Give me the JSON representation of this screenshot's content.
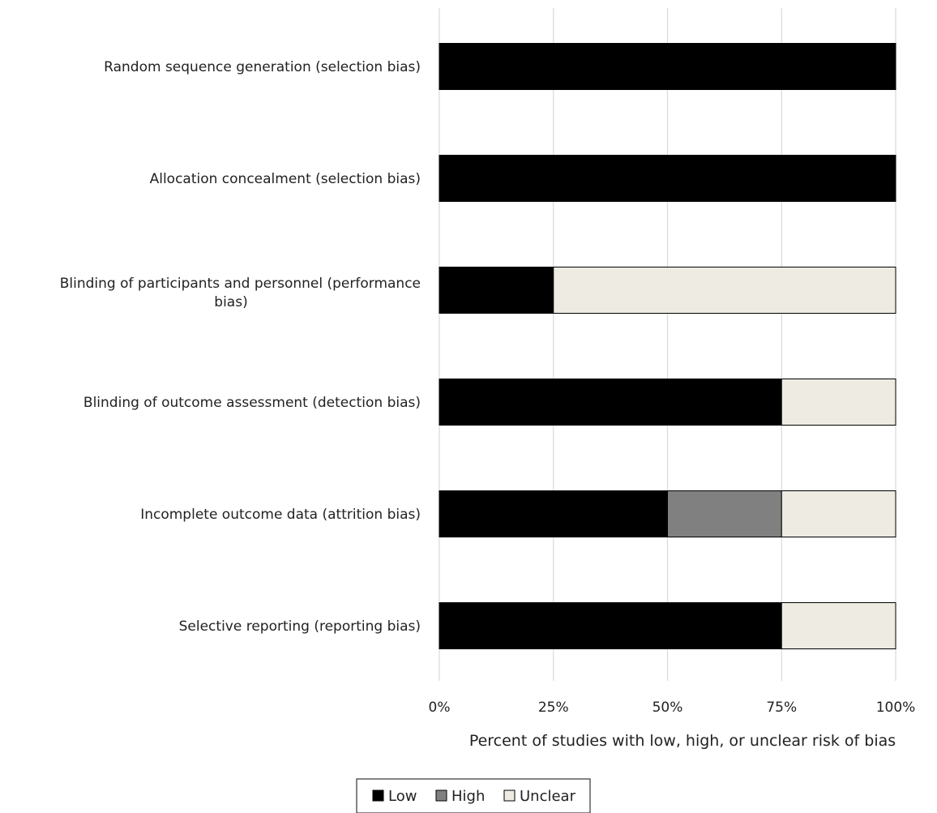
{
  "chart_data": {
    "type": "bar",
    "orientation": "horizontal",
    "stacked": true,
    "categories": [
      "Random sequence generation (selection bias)",
      "Allocation concealment (selection bias)",
      "Blinding of participants and personnel (performance bias)",
      "Blinding of outcome assessment (detection bias)",
      "Incomplete outcome data (attrition bias)",
      "Selective reporting (reporting bias)"
    ],
    "series": [
      {
        "name": "Low",
        "color": "#000000",
        "values": [
          100,
          100,
          25,
          75,
          50,
          75
        ]
      },
      {
        "name": "High",
        "color": "#808080",
        "values": [
          0,
          0,
          0,
          0,
          25,
          0
        ]
      },
      {
        "name": "Unclear",
        "color": "#edebe2",
        "values": [
          0,
          0,
          75,
          25,
          25,
          25
        ]
      }
    ],
    "xlim": [
      0,
      100
    ],
    "x_ticks": [
      "0%",
      "25%",
      "50%",
      "75%",
      "100%"
    ],
    "xlabel": "Percent of studies with low, high, or unclear risk of bias",
    "ylabel": "",
    "title": "",
    "grid": "vertical",
    "legend_position": "bottom"
  }
}
